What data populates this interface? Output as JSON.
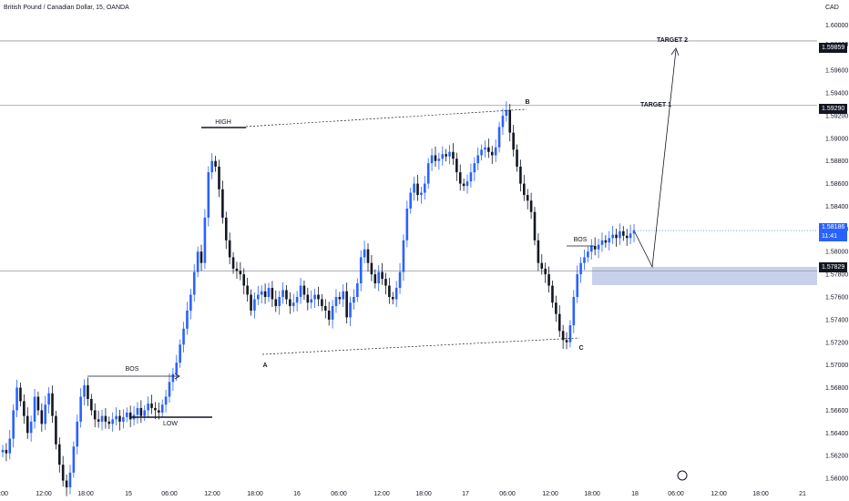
{
  "header": {
    "symbol_title": "British Pound / Canadian Dollar, 15, OANDA",
    "currency": "CAD"
  },
  "chart_data": {
    "type": "line",
    "title": "British Pound / Canadian Dollar, 15, OANDA",
    "xlabel": "",
    "ylabel": "",
    "ylim": [
      1.5588,
      1.6014
    ],
    "y_ticks": [
      "1.60000",
      "1.59830",
      "1.59600",
      "1.59400",
      "1.59200",
      "1.59000",
      "1.58800",
      "1.58600",
      "1.58400",
      "1.58200",
      "1.58000",
      "1.57800",
      "1.57600",
      "1.57400",
      "1.57200",
      "1.57000",
      "1.56800",
      "1.56600",
      "1.56400",
      "1.56200",
      "1.56000"
    ],
    "x_ticks": [
      ":00",
      "12:00",
      "18:00",
      "15",
      "06:00",
      "12:00",
      "18:00",
      "16",
      "06:00",
      "12:00",
      "18:00",
      "17",
      "06:00",
      "12:00",
      "18:00",
      "18",
      "06:00",
      "12:00",
      "18:00",
      "21"
    ],
    "price_marks": {
      "target2": "1.59859",
      "target1": "1.59290",
      "last_price": "1.58186",
      "countdown": "11:41",
      "entry": "1.57829"
    },
    "series": [
      {
        "values": [
          1.5625,
          1.5622,
          1.5635,
          1.566,
          1.568,
          1.5668,
          1.5655,
          1.564,
          1.565,
          1.5672,
          1.566,
          1.5648,
          1.5665,
          1.5675,
          1.5655,
          1.563,
          1.5612,
          1.5598,
          1.5592,
          1.5605,
          1.5628,
          1.565,
          1.5672,
          1.5682,
          1.567,
          1.566,
          1.5652,
          1.565,
          1.5655,
          1.565,
          1.5648,
          1.5652,
          1.5655,
          1.565,
          1.5654,
          1.5658,
          1.5652,
          1.5656,
          1.5662,
          1.5655,
          1.566,
          1.5666,
          1.5662,
          1.566,
          1.5658,
          1.5665,
          1.5672,
          1.5685,
          1.5692,
          1.5702,
          1.5718,
          1.5732,
          1.5748,
          1.5762,
          1.5782,
          1.58,
          1.579,
          1.583,
          1.587,
          1.588,
          1.5875,
          1.5855,
          1.583,
          1.581,
          1.5795,
          1.5785,
          1.5783,
          1.578,
          1.577,
          1.5762,
          1.5748,
          1.5758,
          1.5762,
          1.5765,
          1.576,
          1.5768,
          1.5758,
          1.5752,
          1.576,
          1.5766,
          1.5758,
          1.5752,
          1.5755,
          1.576,
          1.577,
          1.5762,
          1.5755,
          1.5758,
          1.5762,
          1.5758,
          1.5752,
          1.5748,
          1.574,
          1.5752,
          1.576,
          1.5758,
          1.5765,
          1.5742,
          1.5755,
          1.576,
          1.5772,
          1.5795,
          1.5802,
          1.579,
          1.578,
          1.5772,
          1.5782,
          1.5776,
          1.577,
          1.576,
          1.5758,
          1.5768,
          1.5782,
          1.581,
          1.5838,
          1.5852,
          1.586,
          1.585,
          1.5852,
          1.586,
          1.5878,
          1.5885,
          1.588,
          1.5882,
          1.5886,
          1.5884,
          1.5888,
          1.5882,
          1.587,
          1.586,
          1.5858,
          1.5862,
          1.587,
          1.5878,
          1.5885,
          1.589,
          1.5892,
          1.5888,
          1.5885,
          1.5892,
          1.591,
          1.592,
          1.5925,
          1.5905,
          1.589,
          1.5875,
          1.586,
          1.585,
          1.5845,
          1.5835,
          1.581,
          1.579,
          1.5785,
          1.578,
          1.577,
          1.5755,
          1.5745,
          1.573,
          1.5722,
          1.572,
          1.5735,
          1.576,
          1.578,
          1.579,
          1.5795,
          1.58,
          1.5805,
          1.5802,
          1.5806,
          1.581,
          1.5808,
          1.5812,
          1.5815,
          1.5812,
          1.5818,
          1.5814,
          1.5812,
          1.5816,
          1.5819
        ]
      }
    ],
    "annotations": [
      "HIGH",
      "BOS",
      "LOW",
      "A",
      "B",
      "C",
      "BOS",
      "TARGET 1",
      "TARGET 2"
    ],
    "grid": false,
    "colors": {
      "up": "#2962ff",
      "down": "#131722",
      "zone": "#c8d1ec",
      "badge": "#131722",
      "live_badge": "#2962ff"
    }
  }
}
